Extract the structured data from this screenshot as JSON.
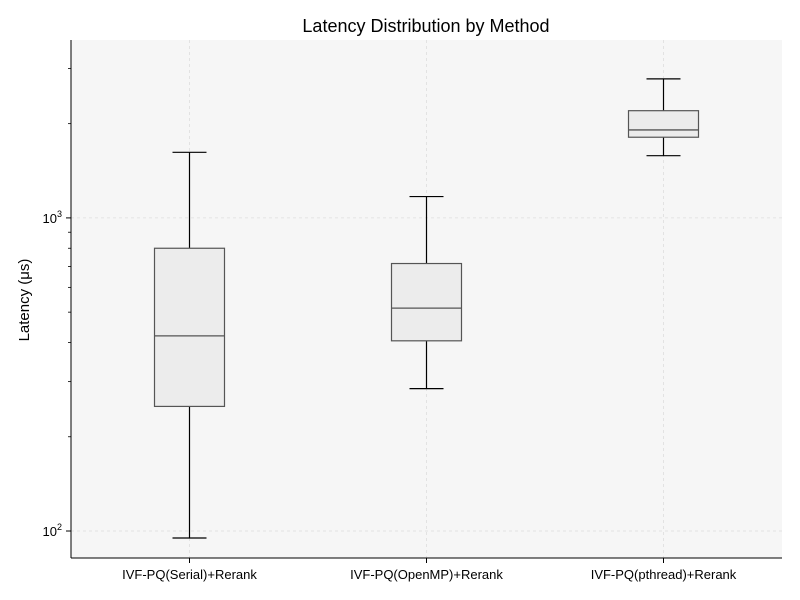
{
  "chart_data": {
    "type": "box",
    "title": "Latency Distribution by Method",
    "xlabel": "",
    "ylabel": "Latency (μs)",
    "yscale": "log",
    "ylim": [
      82,
      3700
    ],
    "grid": true,
    "y_major_ticks": [
      {
        "value": 100,
        "base": "10",
        "exp": "2"
      },
      {
        "value": 1000,
        "base": "10",
        "exp": "3"
      }
    ],
    "y_minor_ticks": [
      200,
      300,
      400,
      500,
      600,
      700,
      800,
      900,
      2000,
      3000
    ],
    "categories": [
      "IVF-PQ(Serial)+Rerank",
      "IVF-PQ(OpenMP)+Rerank",
      "IVF-PQ(pthread)+Rerank"
    ],
    "boxes": [
      {
        "category": "IVF-PQ(Serial)+Rerank",
        "whisker_low": 95,
        "q1": 250,
        "median": 420,
        "q3": 800,
        "whisker_high": 1620
      },
      {
        "category": "IVF-PQ(OpenMP)+Rerank",
        "whisker_low": 285,
        "q1": 405,
        "median": 515,
        "q3": 715,
        "whisker_high": 1170
      },
      {
        "category": "IVF-PQ(pthread)+Rerank",
        "whisker_low": 1580,
        "q1": 1810,
        "median": 1910,
        "q3": 2200,
        "whisker_high": 2780
      }
    ],
    "colors": {
      "plot_bg": "#f6f6f6",
      "box_fill": "#ececec",
      "box_stroke": "#555555",
      "whisker": "#000000",
      "grid": "#dddddd"
    }
  }
}
